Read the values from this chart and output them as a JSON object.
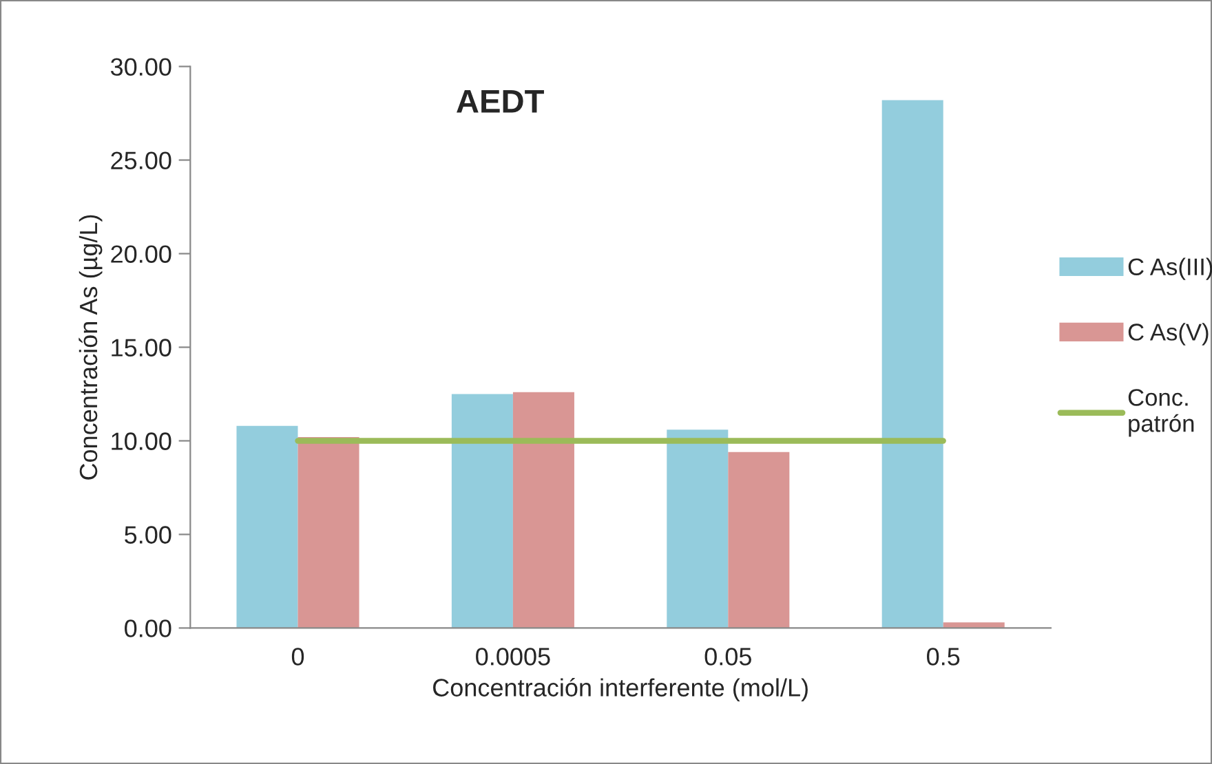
{
  "chart_data": {
    "type": "bar",
    "title": "AEDT",
    "xlabel": "Concentración interferente (mol/L)",
    "ylabel": "Concentración As (µg/L)",
    "categories": [
      "0",
      "0.0005",
      "0.05",
      "0.5"
    ],
    "series": [
      {
        "name": "C As(III)",
        "color": "#93cddd",
        "values": [
          10.8,
          12.5,
          10.6,
          28.2
        ]
      },
      {
        "name": "C As(V)",
        "color": "#d99694",
        "values": [
          10.2,
          12.6,
          9.4,
          0.3
        ]
      },
      {
        "name": "Conc. patrón",
        "type": "line",
        "color": "#9bbb59",
        "values": [
          10,
          10,
          10,
          10
        ]
      }
    ],
    "ylim": [
      0,
      30
    ],
    "yticks": [
      {
        "value": 0,
        "label": "0.00"
      },
      {
        "value": 5,
        "label": "5.00"
      },
      {
        "value": 10,
        "label": "10.00"
      },
      {
        "value": 15,
        "label": "15.00"
      },
      {
        "value": 20,
        "label": "20.00"
      },
      {
        "value": 25,
        "label": "25.00"
      },
      {
        "value": 30,
        "label": "30.00"
      }
    ],
    "grid": false,
    "legend": "right"
  }
}
